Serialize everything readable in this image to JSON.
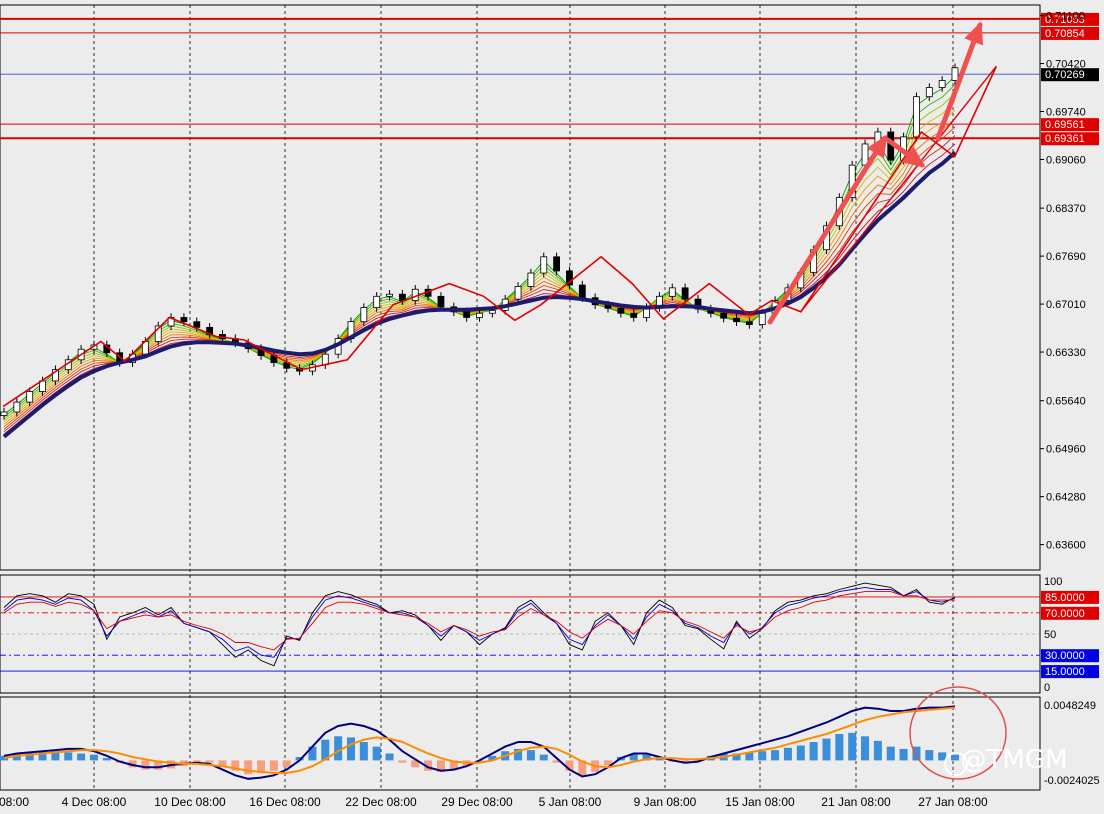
{
  "chart_data": [
    {
      "type": "line",
      "title": "",
      "panel": "main price chart (candlesticks with moving-average ribbon)",
      "y_ticks": [
        "0.71100",
        "0.70420",
        "0.69740",
        "0.69060",
        "0.68370",
        "0.67690",
        "0.67010",
        "0.66330",
        "0.65640",
        "0.64960",
        "0.64280",
        "0.63600"
      ],
      "y_ticks_values": [
        0.711,
        0.7042,
        0.6974,
        0.6906,
        0.6837,
        0.6769,
        0.6701,
        0.6633,
        0.6564,
        0.6496,
        0.6428,
        0.636
      ],
      "ylim": [
        0.6324,
        0.7125
      ],
      "price_levels": [
        {
          "label": "0.71053",
          "value": 0.71053,
          "color": "#e00000"
        },
        {
          "label": "0.70854",
          "value": 0.70854,
          "color": "#e00000"
        },
        {
          "label": "0.70269",
          "value": 0.70269,
          "color": "#000000"
        },
        {
          "label": "0.69561",
          "value": 0.69561,
          "color": "#e00000"
        },
        {
          "label": "0.69361",
          "value": 0.69361,
          "color": "#e00000"
        }
      ],
      "x_ticks": [
        "08:00",
        "4 Dec 08:00",
        "10 Dec 08:00",
        "16 Dec 08:00",
        "22 Dec 08:00",
        "29 Dec 08:00",
        "5 Jan 08:00",
        "9 Jan 08:00",
        "15 Jan 08:00",
        "21 Jan 08:00",
        "27 Jan 08:00"
      ],
      "close_path": [
        0.6548,
        0.6562,
        0.6577,
        0.6592,
        0.6608,
        0.6622,
        0.6637,
        0.6643,
        0.6632,
        0.6618,
        0.663,
        0.6648,
        0.667,
        0.6682,
        0.6676,
        0.6668,
        0.6658,
        0.6652,
        0.6646,
        0.6638,
        0.6628,
        0.6618,
        0.661,
        0.6606,
        0.6615,
        0.663,
        0.6652,
        0.6676,
        0.6696,
        0.6712,
        0.6715,
        0.6706,
        0.6722,
        0.6712,
        0.6697,
        0.669,
        0.6682,
        0.6688,
        0.6692,
        0.6708,
        0.6726,
        0.6745,
        0.6768,
        0.6748,
        0.6728,
        0.671,
        0.67,
        0.6695,
        0.6688,
        0.6682,
        0.6696,
        0.6712,
        0.6724,
        0.6708,
        0.6694,
        0.6688,
        0.6681,
        0.6676,
        0.6672,
        0.6688,
        0.6706,
        0.6724,
        0.6746,
        0.6778,
        0.6812,
        0.6852,
        0.6898,
        0.6928,
        0.6945,
        0.6905,
        0.6938,
        0.6995,
        0.7008,
        0.7018,
        0.7036
      ],
      "ma_slow": [
        0.6513,
        0.6528,
        0.6543,
        0.6558,
        0.6572,
        0.6585,
        0.6597,
        0.6606,
        0.6613,
        0.6618,
        0.6622,
        0.6627,
        0.6634,
        0.6641,
        0.6645,
        0.6647,
        0.6647,
        0.6646,
        0.6645,
        0.6642,
        0.6639,
        0.6635,
        0.6632,
        0.663,
        0.6631,
        0.6636,
        0.6644,
        0.6654,
        0.6664,
        0.6673,
        0.668,
        0.6685,
        0.6689,
        0.6692,
        0.6693,
        0.6693,
        0.6693,
        0.6694,
        0.6695,
        0.6698,
        0.6702,
        0.6706,
        0.671,
        0.6711,
        0.671,
        0.6708,
        0.6705,
        0.6702,
        0.6699,
        0.6697,
        0.6696,
        0.6697,
        0.6698,
        0.6698,
        0.6697,
        0.6694,
        0.6692,
        0.669,
        0.6688,
        0.669,
        0.6695,
        0.6702,
        0.6711,
        0.6724,
        0.6739,
        0.6757,
        0.6779,
        0.68,
        0.682,
        0.6836,
        0.6852,
        0.687,
        0.6887,
        0.69,
        0.6916
      ],
      "zigzag": [
        {
          "x": 0.003,
          "v": 0.6556
        },
        {
          "x": 0.097,
          "v": 0.6648
        },
        {
          "x": 0.12,
          "v": 0.662
        },
        {
          "x": 0.163,
          "v": 0.6682
        },
        {
          "x": 0.208,
          "v": 0.6655
        },
        {
          "x": 0.235,
          "v": 0.665
        },
        {
          "x": 0.29,
          "v": 0.6608
        },
        {
          "x": 0.334,
          "v": 0.6622
        },
        {
          "x": 0.378,
          "v": 0.67
        },
        {
          "x": 0.432,
          "v": 0.673
        },
        {
          "x": 0.465,
          "v": 0.6712
        },
        {
          "x": 0.495,
          "v": 0.6678
        },
        {
          "x": 0.52,
          "v": 0.67
        },
        {
          "x": 0.578,
          "v": 0.6768
        },
        {
          "x": 0.608,
          "v": 0.673
        },
        {
          "x": 0.638,
          "v": 0.668
        },
        {
          "x": 0.682,
          "v": 0.673
        },
        {
          "x": 0.72,
          "v": 0.6686
        },
        {
          "x": 0.742,
          "v": 0.6706
        },
        {
          "x": 0.77,
          "v": 0.669
        },
        {
          "x": 0.886,
          "v": 0.6945
        },
        {
          "x": 0.918,
          "v": 0.691
        },
        {
          "x": 0.958,
          "v": 0.7038
        }
      ]
    },
    {
      "type": "line",
      "title": "",
      "panel": "stochastic oscillator",
      "y_ticks": [
        "100",
        "50",
        "0"
      ],
      "levels": [
        {
          "label": "85.0000",
          "value": 85,
          "color": "#e00000"
        },
        {
          "label": "70.0000",
          "value": 70,
          "color": "#e00000"
        },
        {
          "label": "30.0000",
          "value": 30,
          "color": "#0000e0"
        },
        {
          "label": "15.0000",
          "value": 15,
          "color": "#0000e0"
        }
      ],
      "ylim": [
        0,
        100
      ],
      "series": [
        {
          "color": "#000000",
          "values": [
            75,
            86,
            88,
            86,
            80,
            88,
            86,
            78,
            45,
            66,
            70,
            75,
            68,
            75,
            60,
            56,
            52,
            40,
            28,
            35,
            25,
            20,
            48,
            44,
            70,
            86,
            90,
            87,
            82,
            78,
            70,
            72,
            68,
            58,
            44,
            58,
            52,
            40,
            50,
            56,
            75,
            82,
            70,
            60,
            40,
            35,
            62,
            70,
            58,
            40,
            70,
            82,
            75,
            58,
            55,
            45,
            36,
            62,
            46,
            55,
            72,
            80,
            82,
            86,
            88,
            92,
            95,
            98,
            96,
            94,
            86,
            92,
            80,
            78,
            85
          ]
        },
        {
          "color": "#0000cc",
          "values": [
            72,
            82,
            84,
            82,
            78,
            84,
            82,
            72,
            48,
            62,
            67,
            72,
            66,
            72,
            60,
            56,
            52,
            45,
            34,
            38,
            30,
            28,
            46,
            45,
            66,
            82,
            86,
            84,
            80,
            76,
            70,
            70,
            66,
            58,
            48,
            58,
            52,
            44,
            50,
            55,
            72,
            79,
            68,
            60,
            45,
            40,
            58,
            68,
            58,
            45,
            66,
            78,
            72,
            60,
            56,
            48,
            42,
            60,
            50,
            56,
            70,
            77,
            80,
            84,
            86,
            90,
            92,
            94,
            92,
            92,
            86,
            90,
            82,
            80,
            84
          ]
        },
        {
          "color": "#dd0000",
          "values": [
            70,
            78,
            80,
            80,
            76,
            80,
            78,
            72,
            55,
            62,
            65,
            68,
            66,
            68,
            62,
            58,
            55,
            50,
            42,
            42,
            38,
            35,
            45,
            46,
            60,
            75,
            80,
            80,
            78,
            74,
            70,
            68,
            66,
            60,
            52,
            58,
            54,
            48,
            52,
            54,
            66,
            74,
            68,
            62,
            52,
            46,
            56,
            64,
            58,
            50,
            62,
            72,
            70,
            62,
            58,
            52,
            46,
            58,
            52,
            55,
            66,
            72,
            75,
            80,
            82,
            86,
            88,
            90,
            90,
            90,
            86,
            86,
            82,
            82,
            82
          ]
        }
      ]
    },
    {
      "type": "bar",
      "title": "",
      "panel": "MACD histogram with signal lines",
      "y_ticks": [
        "0.0048249",
        "-0.0024025"
      ],
      "ylim": [
        -0.0024025,
        0.0048249
      ],
      "histogram": [
        0.0004,
        0.0006,
        0.0007,
        0.0008,
        0.0008,
        0.0007,
        0.0006,
        0.0005,
        0.0002,
        -0.0002,
        -0.0006,
        -0.0008,
        -0.0008,
        -0.0007,
        -0.0005,
        -0.0003,
        -0.0002,
        -0.0005,
        -0.0009,
        -0.0012,
        -0.0011,
        -0.0009,
        -0.0006,
        0.0003,
        0.0012,
        0.0018,
        0.0021,
        0.002,
        0.0016,
        0.0012,
        0.0006,
        -0.0002,
        -0.0006,
        -0.0009,
        -0.001,
        -0.0008,
        -0.0005,
        -0.0001,
        0.0004,
        0.0008,
        0.001,
        0.0009,
        0.0005,
        -0.0002,
        -0.0009,
        -0.0013,
        -0.001,
        -0.0004,
        0.0003,
        0.0006,
        0.0005,
        0.0002,
        -0.0001,
        -0.0002,
        0.0001,
        0.0004,
        0.0006,
        0.0006,
        0.0007,
        0.0008,
        0.0009,
        0.0011,
        0.0013,
        0.0016,
        0.0019,
        0.0023,
        0.0024,
        0.0021,
        0.0017,
        0.0012,
        0.001,
        0.0012,
        0.0009,
        0.0007,
        0.0005
      ],
      "series": [
        {
          "color": "#000080",
          "values": [
            0.0004,
            0.0006,
            0.0007,
            0.0008,
            0.0009,
            0.001,
            0.001,
            0.0008,
            0.0004,
            -0.0001,
            -0.0004,
            -0.0006,
            -0.0006,
            -0.0004,
            -0.0003,
            -0.0002,
            -0.0003,
            -0.0008,
            -0.0013,
            -0.0016,
            -0.0015,
            -0.0013,
            -0.0008,
            0.0,
            0.0012,
            0.0024,
            0.003,
            0.0032,
            0.003,
            0.0026,
            0.0018,
            0.0008,
            0.0001,
            -0.0006,
            -0.0009,
            -0.0008,
            -0.0005,
            0.0,
            0.0006,
            0.0012,
            0.0016,
            0.0016,
            0.0012,
            0.0002,
            -0.0008,
            -0.0014,
            -0.0012,
            -0.0006,
            0.0002,
            0.0006,
            0.0006,
            0.0003,
            0.0,
            -0.0002,
            -0.0001,
            0.0003,
            0.0006,
            0.0009,
            0.0012,
            0.0015,
            0.0018,
            0.0021,
            0.0025,
            0.0029,
            0.0033,
            0.0038,
            0.0043,
            0.0046,
            0.0045,
            0.0043,
            0.0043,
            0.0045,
            0.0046,
            0.0046,
            0.0047
          ]
        },
        {
          "color": "#ff8c00",
          "values": [
            0.0002,
            0.0004,
            0.0005,
            0.0006,
            0.0007,
            0.0008,
            0.0009,
            0.0009,
            0.0008,
            0.0006,
            0.0003,
            0.0001,
            -0.0001,
            -0.0002,
            -0.0003,
            -0.0003,
            -0.0004,
            -0.0005,
            -0.0007,
            -0.0009,
            -0.001,
            -0.0011,
            -0.0011,
            -0.0009,
            -0.0005,
            0.0001,
            0.0008,
            0.0014,
            0.0018,
            0.002,
            0.0019,
            0.0016,
            0.0011,
            0.0006,
            0.0002,
            -0.0001,
            -0.0002,
            -0.0002,
            0.0,
            0.0004,
            0.0008,
            0.0011,
            0.0012,
            0.001,
            0.0005,
            -0.0001,
            -0.0005,
            -0.0006,
            -0.0004,
            -0.0001,
            0.0001,
            0.0002,
            0.0002,
            0.0001,
            0.0001,
            0.0002,
            0.0003,
            0.0005,
            0.0007,
            0.0009,
            0.0011,
            0.0014,
            0.0017,
            0.002,
            0.0023,
            0.0027,
            0.0031,
            0.0035,
            0.0038,
            0.004,
            0.0042,
            0.0043,
            0.0044,
            0.0045,
            0.0046
          ]
        }
      ]
    }
  ],
  "watermark": {
    "text": "@TMGM"
  }
}
